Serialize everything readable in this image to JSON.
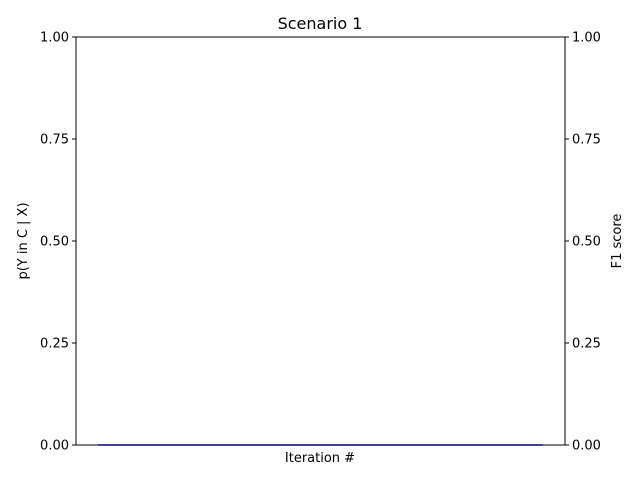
{
  "chart_data": {
    "type": "line",
    "title": "Scenario 1",
    "xlabel": "Iteration #",
    "ylabel_left": "p(Y in C | X)",
    "ylabel_right": "F1 score",
    "ylim_left": [
      0,
      1
    ],
    "ylim_right": [
      0,
      1
    ],
    "yticks_left": [
      "0.00",
      "0.25",
      "0.50",
      "0.75",
      "1.00"
    ],
    "yticks_right": [
      "0.00",
      "0.25",
      "0.50",
      "0.75",
      "1.00"
    ],
    "x_ticks_shown": false,
    "grid": false,
    "series": [
      {
        "axis": "left",
        "color": "#000080",
        "x": [
          0,
          1
        ],
        "y": [
          0,
          0
        ]
      }
    ]
  }
}
